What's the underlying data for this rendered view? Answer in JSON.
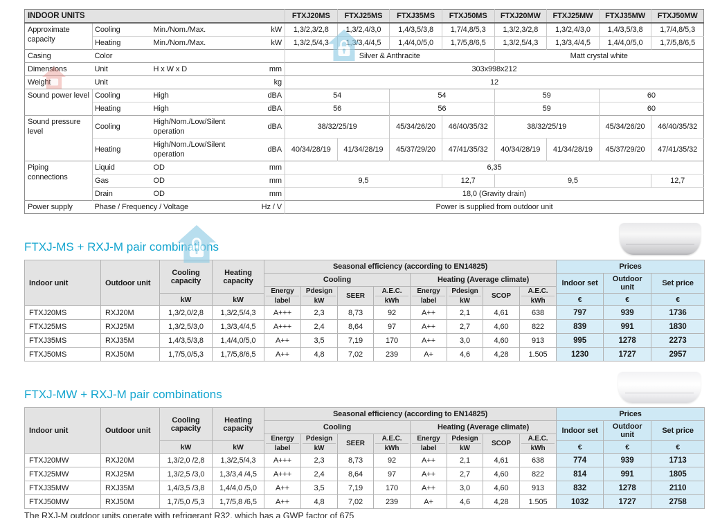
{
  "colors": {
    "accent": "#14a5cf",
    "header_bg": "#e3e3e3",
    "price_header_bg": "#cfe9f5",
    "price_cell_bg": "#d9eef8"
  },
  "footnote": "The RXJ-M outdoor units operate with refrigerant R32, which has a GWP factor of 675",
  "indoor_units": {
    "title": "INDOOR UNITS",
    "columns": [
      "FTXJ20MS",
      "FTXJ25MS",
      "FTXJ35MS",
      "FTXJ50MS",
      "FTXJ20MW",
      "FTXJ25MW",
      "FTXJ35MW",
      "FTXJ50MW"
    ],
    "rows": [
      {
        "group": "Approximate capacity",
        "groupspan": 2,
        "major": true,
        "sub": "Cooling",
        "desc": "Min./Nom./Max.",
        "unit": "kW",
        "values": [
          [
            "1,3/2,3/2,8",
            1
          ],
          [
            "1,3/2,4/3,0",
            1
          ],
          [
            "1,4/3,5/3,8",
            1
          ],
          [
            "1,7/4,8/5,3",
            1
          ],
          [
            "1,3/2,3/2,8",
            1
          ],
          [
            "1,3/2,4/3,0",
            1
          ],
          [
            "1,4/3,5/3,8",
            1
          ],
          [
            "1,7/4,8/5,3",
            1
          ]
        ]
      },
      {
        "sub": "Heating",
        "desc": "Min./Nom./Max.",
        "unit": "kW",
        "values": [
          [
            "1,3/2,5/4,3",
            1
          ],
          [
            "1,3/3,4/4,5",
            1
          ],
          [
            "1,4/4,0/5,0",
            1
          ],
          [
            "1,7/5,8/6,5",
            1
          ],
          [
            "1,3/2,5/4,3",
            1
          ],
          [
            "1,3/3,4/4,5",
            1
          ],
          [
            "1,4/4,0/5,0",
            1
          ],
          [
            "1,7/5,8/6,5",
            1
          ]
        ]
      },
      {
        "group": "Casing",
        "groupspan": 1,
        "major": true,
        "sub": "Color",
        "desc": "",
        "unit": "",
        "values": [
          [
            "Silver & Anthracite",
            4
          ],
          [
            "Matt crystal white",
            4
          ]
        ]
      },
      {
        "group": "Dimensions",
        "groupspan": 1,
        "major": true,
        "sub": "Unit",
        "desc": "H x W x D",
        "unit": "mm",
        "values": [
          [
            "303x998x212",
            8
          ]
        ]
      },
      {
        "group": "Weight",
        "groupspan": 1,
        "major": true,
        "sub": "Unit",
        "desc": "",
        "unit": "kg",
        "values": [
          [
            "12",
            8
          ]
        ]
      },
      {
        "group": "Sound power level",
        "groupspan": 2,
        "major": true,
        "sub": "Cooling",
        "desc": "High",
        "unit": "dBA",
        "values": [
          [
            "54",
            2
          ],
          [
            "54",
            2
          ],
          [
            "59",
            2
          ],
          [
            "60",
            2
          ]
        ]
      },
      {
        "sub": "Heating",
        "desc": "High",
        "unit": "dBA",
        "values": [
          [
            "56",
            2
          ],
          [
            "56",
            2
          ],
          [
            "59",
            2
          ],
          [
            "60",
            2
          ]
        ]
      },
      {
        "group": "Sound pressure level",
        "groupspan": 2,
        "major": true,
        "sub": "Cooling",
        "desc": "High/Nom./Low/Silent operation",
        "unit": "dBA",
        "values": [
          [
            "38/32/25/19",
            2
          ],
          [
            "45/34/26/20",
            1
          ],
          [
            "46/40/35/32",
            1
          ],
          [
            "38/32/25/19",
            2
          ],
          [
            "45/34/26/20",
            1
          ],
          [
            "46/40/35/32",
            1
          ]
        ]
      },
      {
        "sub": "Heating",
        "desc": "High/Nom./Low/Silent operation",
        "unit": "dBA",
        "values": [
          [
            "40/34/28/19",
            1
          ],
          [
            "41/34/28/19",
            1
          ],
          [
            "45/37/29/20",
            1
          ],
          [
            "47/41/35/32",
            1
          ],
          [
            "40/34/28/19",
            1
          ],
          [
            "41/34/28/19",
            1
          ],
          [
            "45/37/29/20",
            1
          ],
          [
            "47/41/35/32",
            1
          ]
        ]
      },
      {
        "group": "Piping connections",
        "groupspan": 3,
        "major": true,
        "sub": "Liquid",
        "desc": "OD",
        "unit": "mm",
        "values": [
          [
            "6,35",
            8
          ]
        ]
      },
      {
        "sub": "Gas",
        "desc": "OD",
        "unit": "mm",
        "values": [
          [
            "9,5",
            3
          ],
          [
            "12,7",
            1
          ],
          [
            "9,5",
            3
          ],
          [
            "12,7",
            1
          ]
        ]
      },
      {
        "sub": "Drain",
        "desc": "OD",
        "unit": "mm",
        "values": [
          [
            "18,0 (Gravity drain)",
            8
          ]
        ]
      },
      {
        "group": "Power supply",
        "groupspan": 1,
        "major": true,
        "sub": "Phase / Frequency / Voltage",
        "subspan": 2,
        "unit": "Hz / V",
        "values": [
          [
            "Power is supplied from outdoor unit",
            8
          ]
        ]
      }
    ]
  },
  "combo_header": {
    "indoor_unit": "Indoor unit",
    "outdoor_unit": "Outdoor unit",
    "cooling_capacity": "Cooling capacity",
    "heating_capacity": "Heating capacity",
    "kw": "kW",
    "euro": "€",
    "seasonal": "Seasonal efficiency (according to EN14825)",
    "cooling": "Cooling",
    "heating_avg": "Heating (Average climate)",
    "energy": "Energy",
    "label": "label",
    "pdesign": "Pdesign",
    "seer": "SEER",
    "scop": "SCOP",
    "aec": "A.E.C.",
    "kwh": "kWh",
    "prices": "Prices",
    "indoor_set": "Indoor set",
    "outdoor_unit2": "Outdoor unit",
    "set_price": "Set price"
  },
  "sections": {
    "ms": {
      "title": "FTXJ-MS + RXJ-M pair combinations",
      "rows": [
        [
          "FTXJ20MS",
          "RXJ20M",
          "1,3/2,0/2,8",
          "1,3/2,5/4,3",
          "A+++",
          "2,3",
          "8,73",
          "92",
          "A++",
          "2,1",
          "4,61",
          "638",
          "797",
          "939",
          "1736"
        ],
        [
          "FTXJ25MS",
          "RXJ25M",
          "1,3/2,5/3,0",
          "1,3/3,4/4,5",
          "A+++",
          "2,4",
          "8,64",
          "97",
          "A++",
          "2,7",
          "4,60",
          "822",
          "839",
          "991",
          "1830"
        ],
        [
          "FTXJ35MS",
          "RXJ35M",
          "1,4/3,5/3,8",
          "1,4/4,0/5,0",
          "A++",
          "3,5",
          "7,19",
          "170",
          "A++",
          "3,0",
          "4,60",
          "913",
          "995",
          "1278",
          "2273"
        ],
        [
          "FTXJ50MS",
          "RXJ50M",
          "1,7/5,0/5,3",
          "1,7/5,8/6,5",
          "A++",
          "4,8",
          "7,02",
          "239",
          "A+",
          "4,6",
          "4,28",
          "1.505",
          "1230",
          "1727",
          "2957"
        ]
      ]
    },
    "mw": {
      "title": "FTXJ-MW + RXJ-M pair combinations",
      "rows": [
        [
          "FTXJ20MW",
          "RXJ20M",
          "1,3/2,0 /2,8",
          "1,3/2,5/4,3",
          "A+++",
          "2,3",
          "8,73",
          "92",
          "A++",
          "2,1",
          "4,61",
          "638",
          "774",
          "939",
          "1713"
        ],
        [
          "FTXJ25MW",
          "RXJ25M",
          "1,3/2,5 /3,0",
          "1,3/3,4 /4,5",
          "A+++",
          "2,4",
          "8,64",
          "97",
          "A++",
          "2,7",
          "4,60",
          "822",
          "814",
          "991",
          "1805"
        ],
        [
          "FTXJ35MW",
          "RXJ35M",
          "1,4/3,5 /3,8",
          "1,4/4,0 /5,0",
          "A++",
          "3,5",
          "7,19",
          "170",
          "A++",
          "3,0",
          "4,60",
          "913",
          "832",
          "1278",
          "2110"
        ],
        [
          "FTXJ50MW",
          "RXJ50M",
          "1,7/5,0 /5,3",
          "1,7/5,8 /6,5",
          "A++",
          "4,8",
          "7,02",
          "239",
          "A+",
          "4,6",
          "4,28",
          "1.505",
          "1032",
          "1727",
          "2758"
        ]
      ]
    }
  }
}
